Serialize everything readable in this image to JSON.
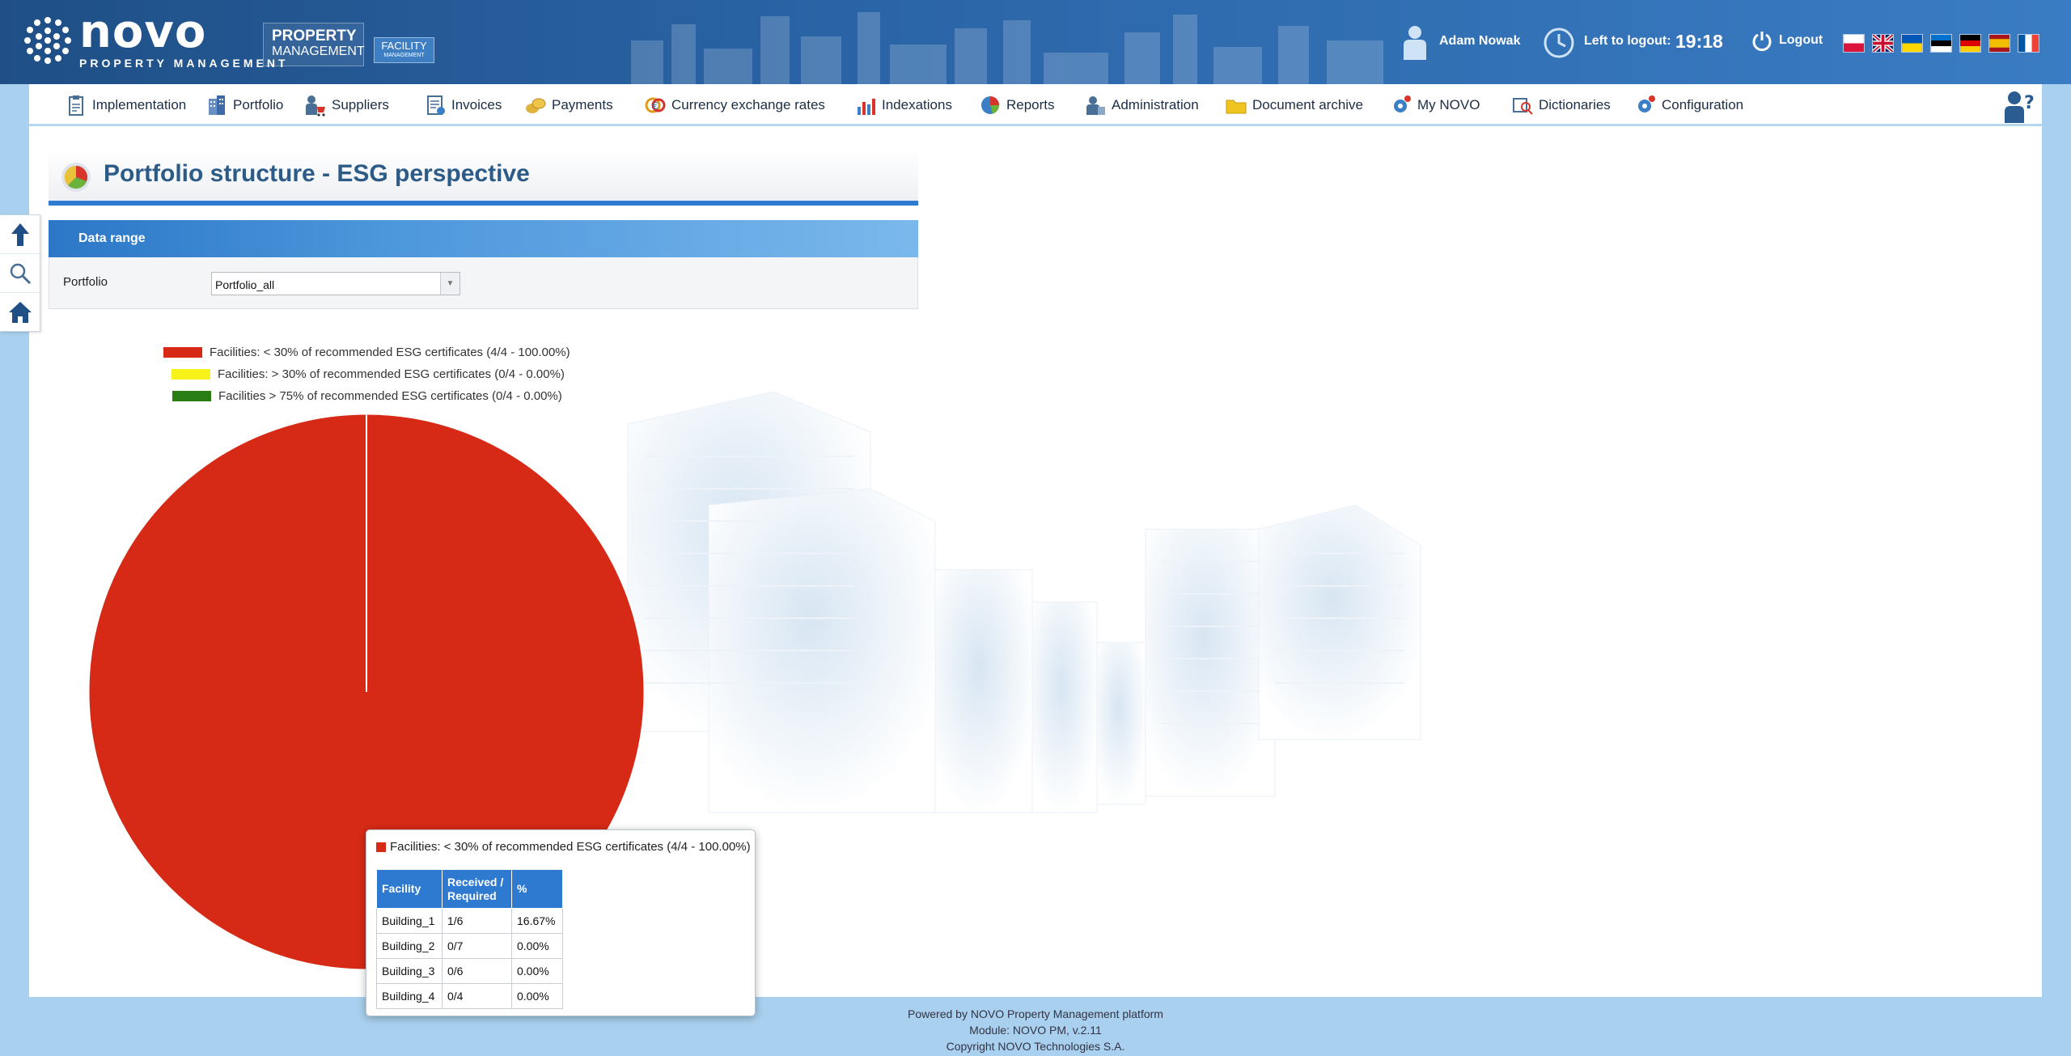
{
  "header": {
    "logo": {
      "word": "novo",
      "sub": "PROPERTY MANAGEMENT"
    },
    "badge_pm": {
      "line1": "PROPERTY",
      "line2": "MANAGEMENT"
    },
    "badge_fm": {
      "line1": "FACILITY",
      "line2": "MANAGEMENT"
    },
    "user_name": "Adam Nowak",
    "logout_label": "Left to logout:",
    "timer": "19:18",
    "logout_button": "Logout",
    "flags": [
      "pl",
      "gb",
      "ua",
      "ee",
      "de",
      "es",
      "fr"
    ]
  },
  "nav": {
    "items": [
      {
        "label": "Implementation",
        "icon": "clipboard-icon"
      },
      {
        "label": "Portfolio",
        "icon": "building-icon"
      },
      {
        "label": "Suppliers",
        "icon": "supplier-cart-icon"
      },
      {
        "label": "Invoices",
        "icon": "invoice-icon"
      },
      {
        "label": "Payments",
        "icon": "coins-icon"
      },
      {
        "label": "Currency exchange rates",
        "icon": "currency-exchange-icon"
      },
      {
        "label": "Indexations",
        "icon": "bar-chart-icon"
      },
      {
        "label": "Reports",
        "icon": "pie-chart-icon"
      },
      {
        "label": "Administration",
        "icon": "admin-user-icon"
      },
      {
        "label": "Document archive",
        "icon": "folder-icon"
      },
      {
        "label": "My NOVO",
        "icon": "gear-user-icon"
      },
      {
        "label": "Dictionaries",
        "icon": "dictionary-search-icon"
      },
      {
        "label": "Configuration",
        "icon": "gear-icon"
      }
    ]
  },
  "page": {
    "title": "Portfolio structure - ESG perspective",
    "data_range_header": "Data range",
    "portfolio_label": "Portfolio",
    "portfolio_value": "Portfolio_all"
  },
  "legend": [
    {
      "label": "Facilities: < 30% of recommended ESG certificates (4/4 - 100.00%)",
      "color": "#d62a16"
    },
    {
      "label": "Facilities: > 30% of recommended ESG certificates (0/4 - 0.00%)",
      "color": "#f7f21a"
    },
    {
      "label": "Facilities > 75% of recommended ESG certificates (0/4 - 0.00%)",
      "color": "#2a7d12"
    }
  ],
  "chart_data": {
    "type": "pie",
    "slices": [
      {
        "label": "Facilities: < 30% of recommended ESG certificates",
        "value": 4,
        "percent": 100.0,
        "color": "#d62a16"
      },
      {
        "label": "Facilities: > 30% of recommended ESG certificates",
        "value": 0,
        "percent": 0.0,
        "color": "#f7f21a"
      },
      {
        "label": "Facilities > 75% of recommended ESG certificates",
        "value": 0,
        "percent": 0.0,
        "color": "#2a7d12"
      }
    ]
  },
  "tooltip": {
    "title": "Facilities: < 30% of recommended ESG certificates (4/4 - 100.00%)",
    "color": "#d62a16",
    "headers": [
      "Facility",
      "Received / Required",
      "%"
    ],
    "rows": [
      [
        "Building_1",
        "1/6",
        "16.67%"
      ],
      [
        "Building_2",
        "0/7",
        "0.00%"
      ],
      [
        "Building_3",
        "0/6",
        "0.00%"
      ],
      [
        "Building_4",
        "0/4",
        "0.00%"
      ]
    ]
  },
  "footer": {
    "line1": "Powered by NOVO Property Management platform",
    "line2": "Module: NOVO PM, v.2.11",
    "line3": "Copyright NOVO Technologies S.A."
  }
}
